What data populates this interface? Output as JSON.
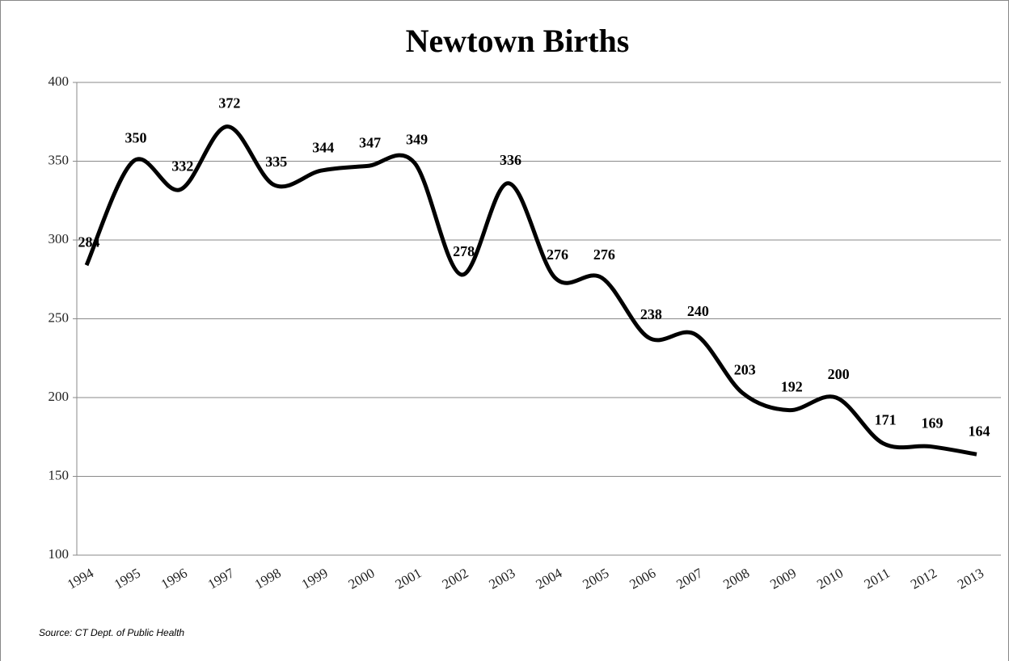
{
  "chart_data": {
    "type": "line",
    "title": "Newtown Births",
    "categories": [
      "1994",
      "1995",
      "1996",
      "1997",
      "1998",
      "1999",
      "2000",
      "2001",
      "2002",
      "2003",
      "2004",
      "2005",
      "2006",
      "2007",
      "2008",
      "2009",
      "2010",
      "2011",
      "2012",
      "2013"
    ],
    "values": [
      284,
      350,
      332,
      372,
      335,
      344,
      347,
      349,
      278,
      336,
      276,
      276,
      238,
      240,
      203,
      192,
      200,
      171,
      169,
      164
    ],
    "color": "#000000",
    "smooth": true,
    "grid": true,
    "ylim": [
      100,
      400
    ],
    "yticks": [
      100,
      150,
      200,
      250,
      300,
      350,
      400
    ],
    "source": "Source: CT Dept. of Public Health"
  }
}
